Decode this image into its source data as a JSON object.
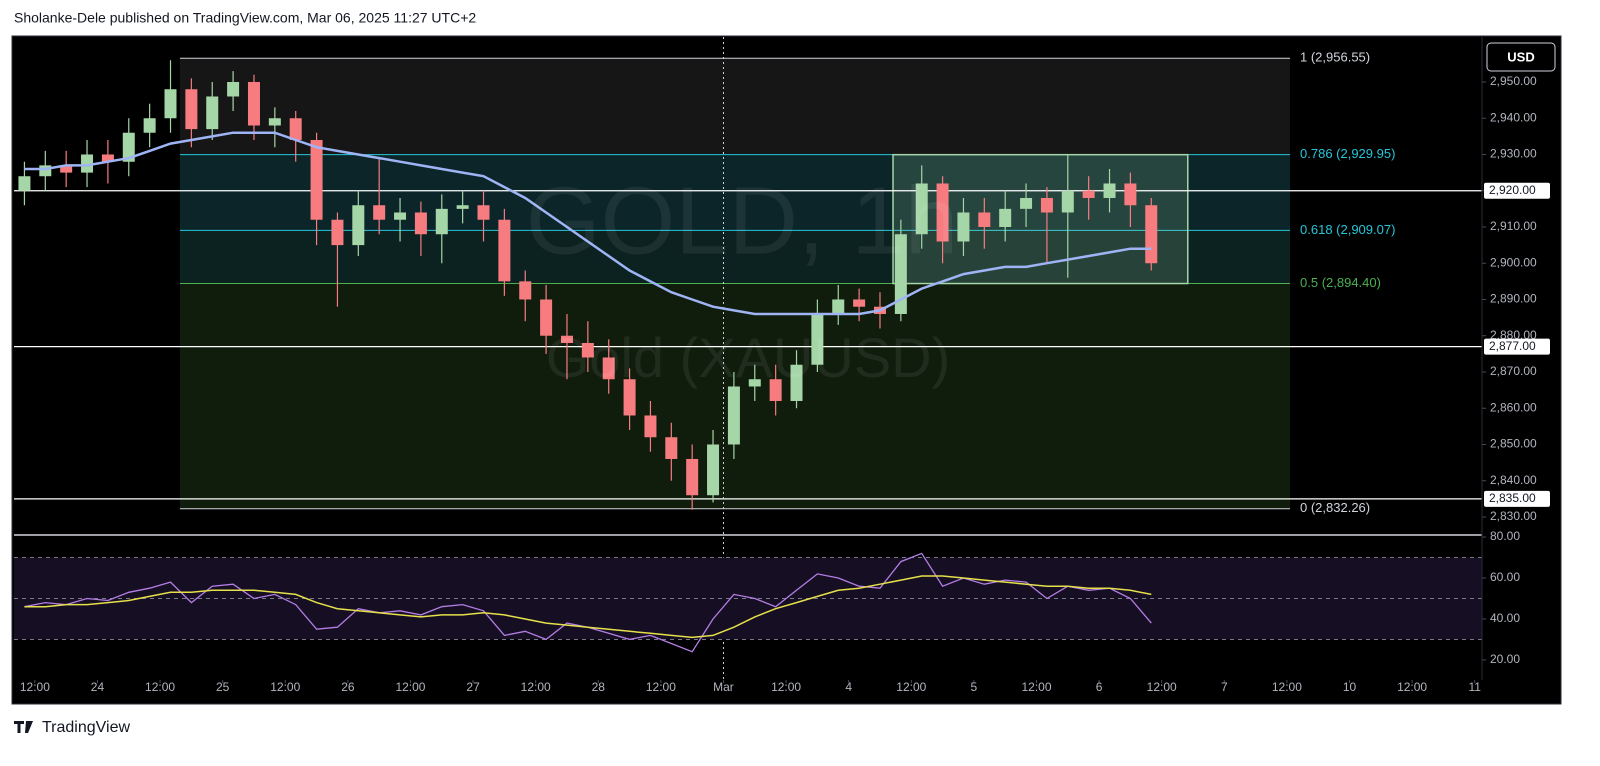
{
  "header": {
    "text": "Sholanke-Dele published on TradingView.com, Mar 06, 2025 11:27 UTC+2"
  },
  "footer": {
    "brand": "TradingView"
  },
  "currency": "USD",
  "chart_data": {
    "type": "candlestick",
    "title": "GOLD, 1h",
    "subtitle": "Gold (XAUUSD)",
    "up_color": "#a5d6a7",
    "down_color": "#f77c80",
    "xlim": [
      -4,
      277.4
    ],
    "ylim": [
      2825.03,
      2962.41
    ],
    "xticks": [
      {
        "value": 0,
        "label": "12:00"
      },
      {
        "value": 12,
        "label": "24"
      },
      {
        "value": 24,
        "label": "12:00"
      },
      {
        "value": 36,
        "label": "25"
      },
      {
        "value": 48,
        "label": "12:00"
      },
      {
        "value": 60,
        "label": "26"
      },
      {
        "value": 72,
        "label": "12:00"
      },
      {
        "value": 84,
        "label": "27"
      },
      {
        "value": 96,
        "label": "12:00"
      },
      {
        "value": 108,
        "label": "28"
      },
      {
        "value": 120,
        "label": "12:00"
      },
      {
        "value": 132,
        "label": "Mar"
      },
      {
        "value": 144,
        "label": "12:00"
      },
      {
        "value": 156,
        "label": "4"
      },
      {
        "value": 168,
        "label": "12:00"
      },
      {
        "value": 180,
        "label": "5"
      },
      {
        "value": 192,
        "label": "12:00"
      },
      {
        "value": 204,
        "label": "6"
      },
      {
        "value": 216,
        "label": "12:00"
      },
      {
        "value": 228,
        "label": "7"
      },
      {
        "value": 240,
        "label": "12:00"
      },
      {
        "value": 252,
        "label": "10"
      },
      {
        "value": 264,
        "label": "12:00"
      },
      {
        "value": 276,
        "label": "11"
      }
    ],
    "yticks": [
      {
        "value": 2830,
        "label": "2,830.00"
      },
      {
        "value": 2840,
        "label": "2,840.00"
      },
      {
        "value": 2850,
        "label": "2,850.00"
      },
      {
        "value": 2860,
        "label": "2,860.00"
      },
      {
        "value": 2870,
        "label": "2,870.00"
      },
      {
        "value": 2880,
        "label": "2,880.00"
      },
      {
        "value": 2890,
        "label": "2,890.00"
      },
      {
        "value": 2900,
        "label": "2,900.00"
      },
      {
        "value": 2910,
        "label": "2,910.00"
      },
      {
        "value": 2920,
        "label": "2,920.00"
      },
      {
        "value": 2930,
        "label": "2,930.00"
      },
      {
        "value": 2940,
        "label": "2,940.00"
      },
      {
        "value": 2950,
        "label": "2,950.00"
      }
    ],
    "x": [
      -2,
      2,
      6,
      10,
      14,
      18,
      22,
      26,
      30,
      34,
      38,
      42,
      46,
      50,
      54,
      58,
      62,
      66,
      70,
      74,
      78,
      82,
      86,
      90,
      94,
      98,
      102,
      106,
      110,
      114,
      118,
      122,
      126,
      130,
      134,
      138,
      142,
      146,
      150,
      154,
      158,
      162,
      166,
      170,
      174,
      178,
      182,
      186,
      190,
      194,
      198,
      202,
      206,
      210,
      214
    ],
    "open": [
      2920,
      2924,
      2927,
      2925,
      2930,
      2928,
      2936,
      2940,
      2948,
      2937,
      2946,
      2950,
      2938,
      2940,
      2934,
      2912,
      2905,
      2916,
      2912,
      2914,
      2908,
      2915,
      2916,
      2912,
      2895,
      2890,
      2880,
      2878,
      2874,
      2868,
      2858,
      2852,
      2846,
      2836,
      2850,
      2866,
      2868,
      2862,
      2872,
      2886,
      2890,
      2888,
      2886,
      2908,
      2922,
      2906,
      2914,
      2910,
      2915,
      2918,
      2914,
      2920,
      2918,
      2922,
      2916
    ],
    "high": [
      2928,
      2931,
      2931,
      2934,
      2934,
      2940,
      2944,
      2956,
      2951,
      2950,
      2953,
      2952,
      2943,
      2942,
      2936,
      2914,
      2920,
      2929,
      2918,
      2917,
      2919,
      2920,
      2920,
      2915,
      2898,
      2894,
      2886,
      2884,
      2879,
      2871,
      2862,
      2856,
      2850,
      2854,
      2870,
      2872,
      2872,
      2876,
      2890,
      2894,
      2893,
      2892,
      2912,
      2927,
      2924,
      2918,
      2918,
      2920,
      2922,
      2921,
      2930,
      2924,
      2926,
      2925,
      2918
    ],
    "low": [
      2916,
      2920,
      2921,
      2921,
      2922,
      2924,
      2932,
      2936,
      2932,
      2934,
      2942,
      2934,
      2932,
      2928,
      2905,
      2888,
      2902,
      2908,
      2906,
      2902,
      2900,
      2911,
      2906,
      2891,
      2884,
      2875,
      2868,
      2870,
      2864,
      2854,
      2848,
      2840,
      2832,
      2834,
      2846,
      2862,
      2858,
      2860,
      2870,
      2883,
      2884,
      2882,
      2884,
      2904,
      2900,
      2902,
      2904,
      2906,
      2910,
      2900,
      2896,
      2912,
      2914,
      2910,
      2898
    ],
    "close": [
      2924,
      2927,
      2925,
      2930,
      2928,
      2936,
      2940,
      2948,
      2937,
      2946,
      2950,
      2938,
      2940,
      2934,
      2912,
      2905,
      2916,
      2912,
      2914,
      2908,
      2915,
      2916,
      2912,
      2895,
      2890,
      2880,
      2878,
      2874,
      2868,
      2858,
      2852,
      2846,
      2836,
      2850,
      2866,
      2868,
      2862,
      2872,
      2886,
      2890,
      2888,
      2886,
      2908,
      2922,
      2906,
      2914,
      2910,
      2915,
      2918,
      2914,
      2920,
      2918,
      2922,
      2916,
      2900
    ],
    "ma": {
      "color": "#9fb4f5",
      "values": [
        2926,
        2926,
        2927,
        2927,
        2928,
        2929,
        2931,
        2933,
        2934,
        2935,
        2936,
        2936,
        2936,
        2934,
        2932,
        2931,
        2930,
        2929,
        2928,
        2927,
        2926,
        2925,
        2924,
        2921,
        2918,
        2914,
        2910,
        2906,
        2902,
        2898,
        2895,
        2892,
        2890,
        2888,
        2887,
        2886,
        2886,
        2886,
        2886,
        2886,
        2886,
        2887,
        2890,
        2893,
        2895,
        2897,
        2898,
        2899,
        2899,
        2900,
        2901,
        2902,
        2903,
        2904,
        2904
      ]
    },
    "fib": {
      "x": [
        27.8,
        240.6
      ],
      "levels": [
        {
          "label": "1 (2,956.55)",
          "value": 2956.55,
          "color": "#d1d4dc"
        },
        {
          "label": "0.786 (2,929.95)",
          "value": 2929.95,
          "color": "#26c6da"
        },
        {
          "label": "0.618 (2,909.07)",
          "value": 2909.07,
          "color": "#26c6da"
        },
        {
          "label": "0.5 (2,894.40)",
          "value": 2894.4,
          "color": "#4caf50"
        },
        {
          "label": "0 (2,832.26)",
          "value": 2832.26,
          "color": "#d1d4dc"
        }
      ],
      "zones": [
        "#161616",
        "#0b2529",
        "#0b2220",
        "#101c0c"
      ]
    },
    "hlines": [
      {
        "value": 2920,
        "label": "2,920.00"
      },
      {
        "value": 2877,
        "label": "2,877.00"
      },
      {
        "value": 2835,
        "label": "2,835.00"
      }
    ],
    "box": {
      "x": [
        164.5,
        221
      ],
      "y": [
        2894.4,
        2929.95
      ],
      "color": "#a5d6a7"
    },
    "crosshair_x": 132,
    "rsi": {
      "ylim": [
        10.2,
        81
      ],
      "color": "#b47ee5",
      "ma_color": "#e6e04a",
      "band_color": "#160f24",
      "levels": [
        30,
        50,
        70
      ],
      "yticks": [
        {
          "value": 20,
          "label": "20.00"
        },
        {
          "value": 40,
          "label": "40.00"
        },
        {
          "value": 60,
          "label": "60.00"
        },
        {
          "value": 80,
          "label": "80.00"
        }
      ],
      "values": [
        46,
        48,
        47,
        50,
        49,
        53,
        55,
        58,
        48,
        56,
        57,
        50,
        52,
        47,
        35,
        36,
        45,
        43,
        44,
        42,
        46,
        47,
        44,
        32,
        34,
        30,
        38,
        36,
        33,
        30,
        32,
        28,
        24,
        40,
        52,
        50,
        46,
        54,
        62,
        60,
        56,
        55,
        68,
        72,
        56,
        60,
        57,
        59,
        58,
        50,
        56,
        54,
        55,
        50,
        38
      ],
      "ma_values": [
        46,
        46,
        47,
        47,
        48,
        49,
        51,
        53,
        53,
        54,
        54,
        54,
        53,
        52,
        48,
        45,
        44,
        43,
        42,
        41,
        42,
        42,
        43,
        42,
        40,
        38,
        37,
        36,
        35,
        34,
        33,
        32,
        31,
        32,
        36,
        41,
        45,
        48,
        51,
        54,
        55,
        57,
        59,
        61,
        61,
        60,
        59,
        58,
        57,
        56,
        56,
        55,
        55,
        54,
        52
      ]
    }
  }
}
